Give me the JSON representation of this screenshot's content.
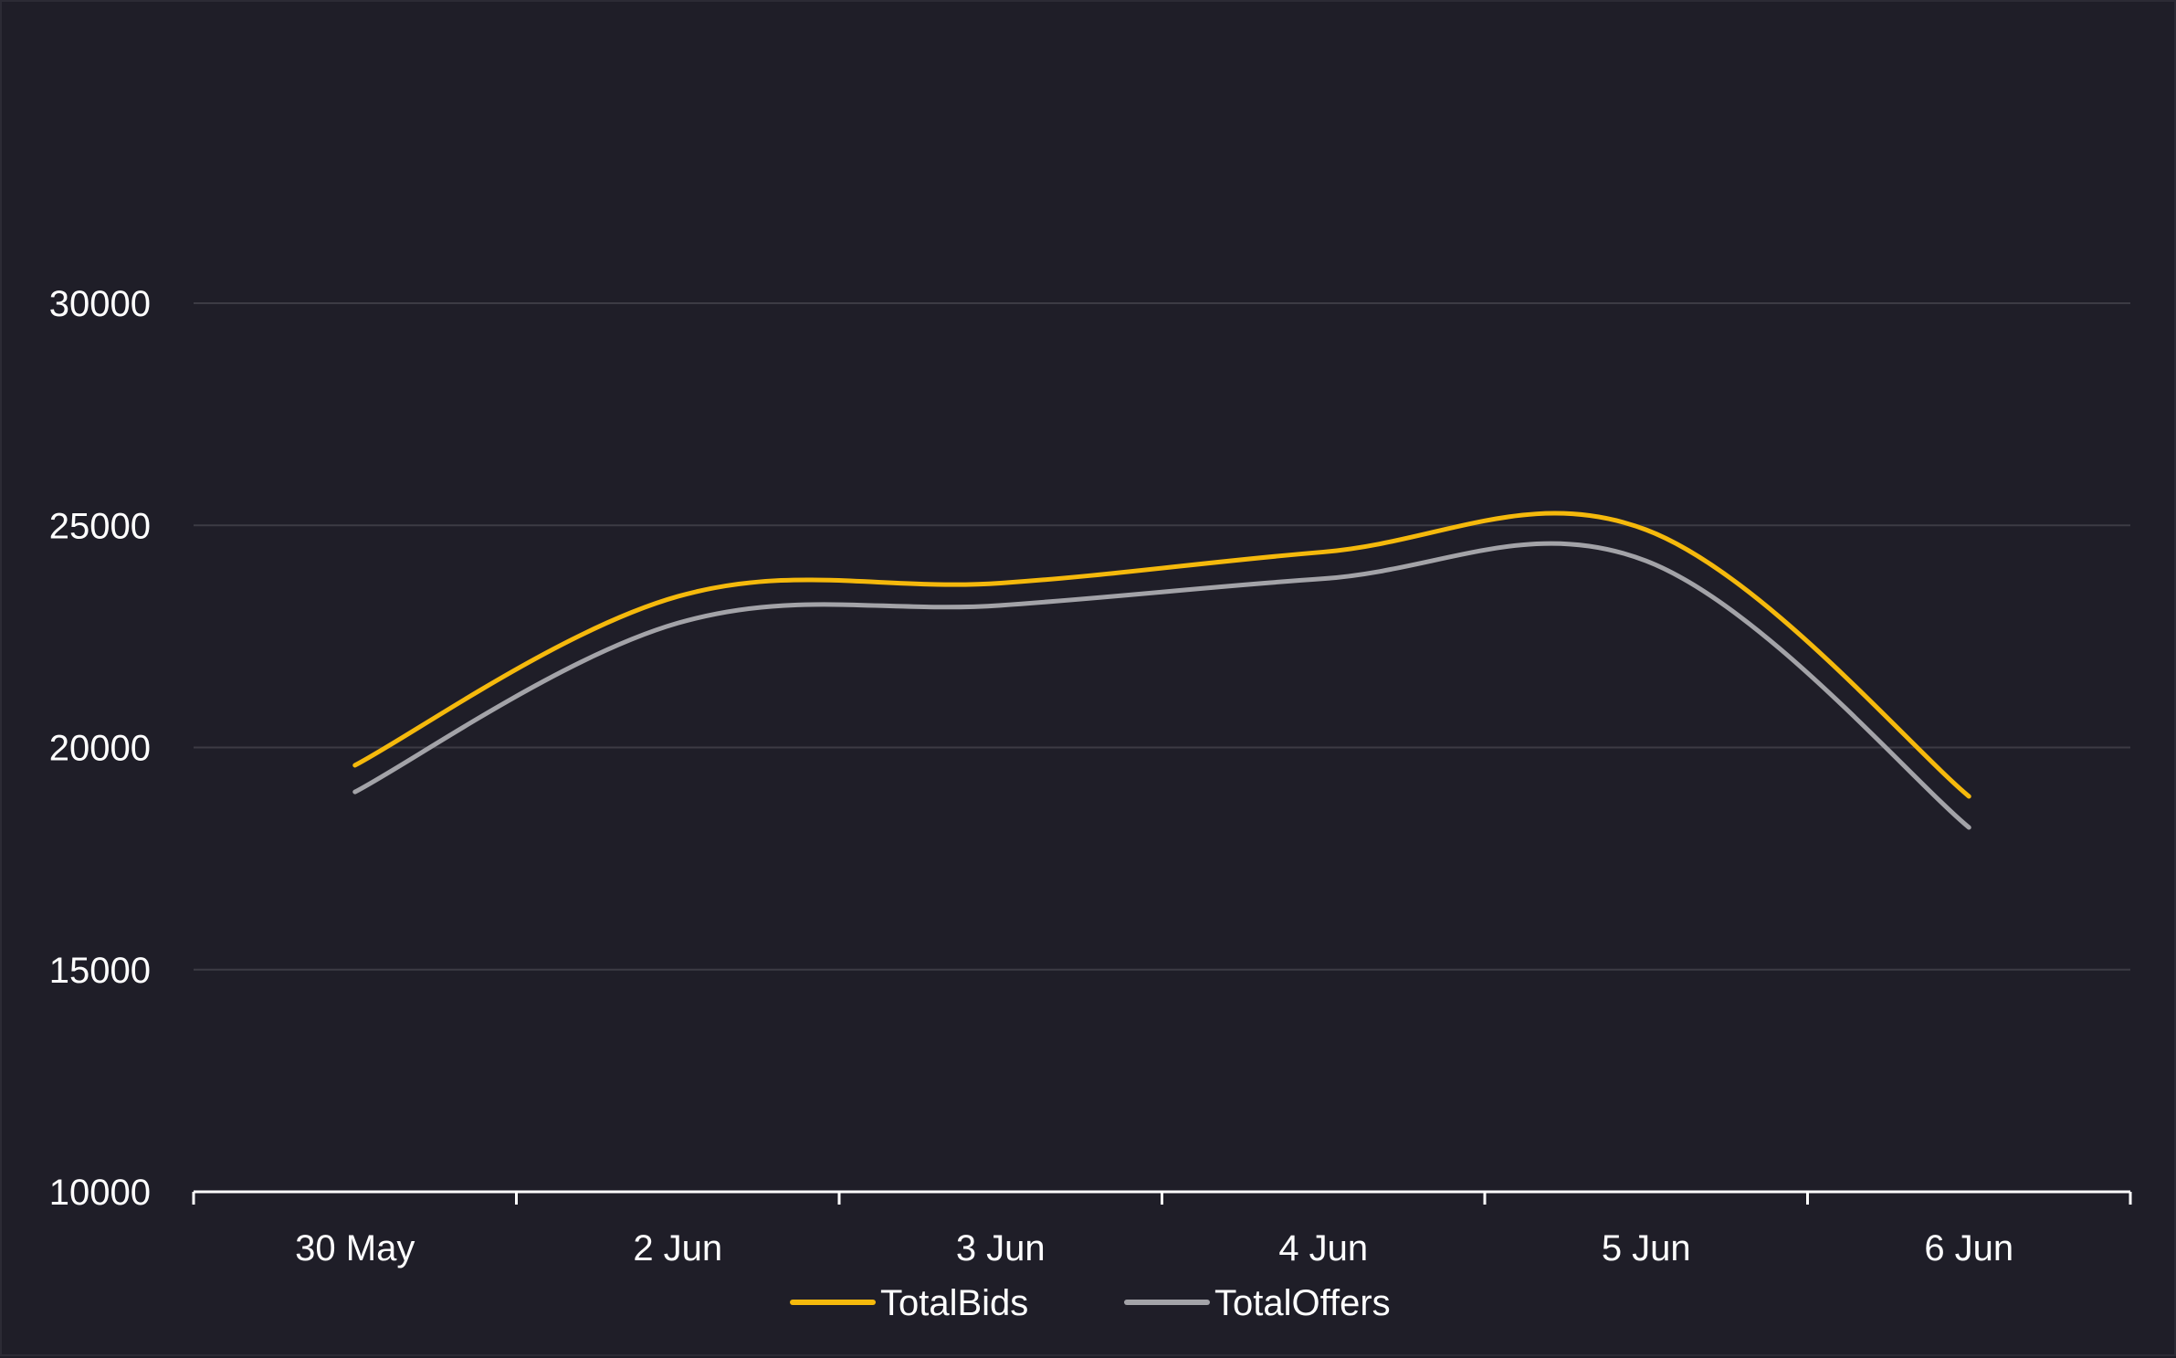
{
  "chart_data": {
    "type": "line",
    "categories": [
      "30 May",
      "2 Jun",
      "3 Jun",
      "4 Jun",
      "5 Jun",
      "6 Jun"
    ],
    "series": [
      {
        "name": "TotalBids",
        "color": "#f5b90c",
        "values": [
          19600,
          23400,
          23700,
          24400,
          24900,
          18900
        ]
      },
      {
        "name": "TotalOffers",
        "color": "#a3a3a8",
        "values": [
          19000,
          22800,
          23200,
          23800,
          24200,
          18200
        ]
      }
    ],
    "ylim": [
      10000,
      30000
    ],
    "yticks": [
      10000,
      15000,
      20000,
      25000,
      30000
    ],
    "ytick_labels": [
      "10000",
      "15000",
      "20000",
      "25000",
      "30000"
    ],
    "grid": true,
    "legend_position": "bottom",
    "title": "",
    "xlabel": "",
    "ylabel": ""
  }
}
